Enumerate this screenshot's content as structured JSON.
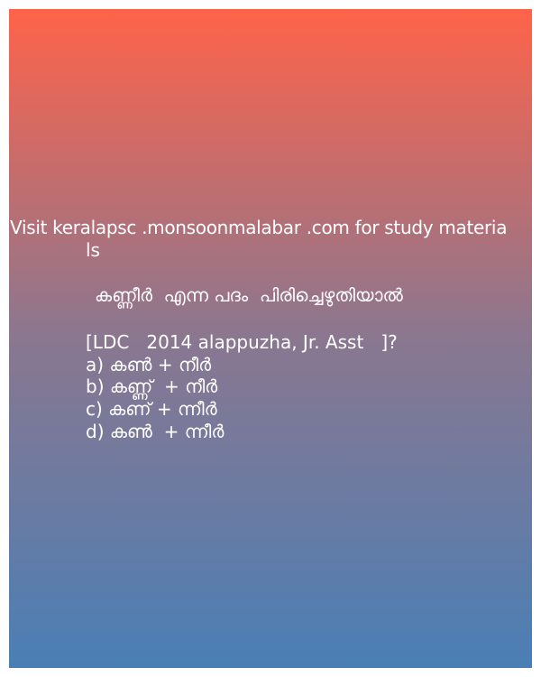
{
  "source_line_1": "Visit keralapsc .monsoonmalabar .com for study materia",
  "source_line_2": "ls",
  "question": "കണ്ണീർ  എന്ന പദം  പിരിച്ചെഴുതിയാൽ",
  "exam_tag": "[LDC   2014 alappuzha, Jr. Asst   ]?",
  "options": [
    "a) കൺ + നീർ",
    "b) കണ്ണ്  + നീർ",
    "c) കണ് + ന്നീർ",
    "d) കൺ  + ന്നീർ"
  ],
  "colors": {
    "gradient_top": "#ff634a",
    "gradient_middle": "#8a7790",
    "gradient_bottom": "#4a7fb5"
  }
}
